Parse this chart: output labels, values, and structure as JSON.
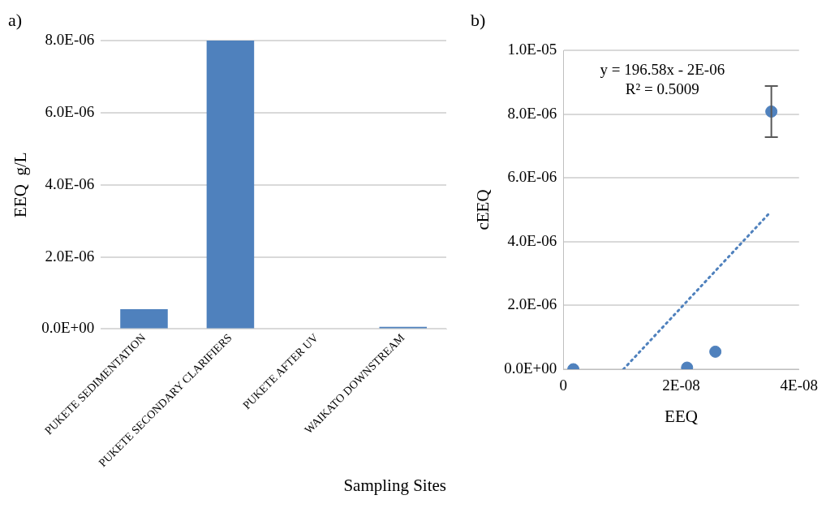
{
  "chart_data": [
    {
      "type": "bar",
      "annotations": [
        "a)"
      ],
      "xlabel": "Sampling Sites",
      "ylabel": "EEQ  g/L",
      "categories": [
        "PUKETE SEDIMENTATION",
        "PUKETE SECONDARY CLARIFIERS",
        "PUKETE AFTER UV",
        "WAIKATO DOWNSTREAM"
      ],
      "values": [
        5.5e-07,
        8e-06,
        0,
        6e-08
      ],
      "color": "#4f81bd",
      "ylim": [
        0,
        8e-06
      ],
      "yticks": [
        {
          "value": 0,
          "label": "0.0E+00"
        },
        {
          "value": 2e-06,
          "label": "2.0E-06"
        },
        {
          "value": 4e-06,
          "label": "4.0E-06"
        },
        {
          "value": 6e-06,
          "label": "6.0E-06"
        },
        {
          "value": 8e-06,
          "label": "8.0E-06"
        }
      ],
      "grid": "y",
      "legend": false
    },
    {
      "type": "scatter",
      "annotations": [
        "b)",
        "y = 196.58x - 2E-06",
        "R² = 0.5009"
      ],
      "xlabel": "EEQ",
      "ylabel": "cEEQ",
      "series": [
        {
          "type": "scatter",
          "color": "#4f81bd",
          "x": [
            1.7e-09,
            2.1e-08,
            2.58e-08,
            3.53e-08
          ],
          "values": [
            0,
            5e-08,
            5.5e-07,
            8.08e-06
          ],
          "errors": [
            null,
            null,
            null,
            8e-07
          ],
          "marker": "circle"
        },
        {
          "type": "line",
          "color": "#4f81bd",
          "x": [
            1.02e-08,
            3.5e-08
          ],
          "values": [
            0,
            4.9e-06
          ],
          "line_style": "dotted",
          "marker": "none"
        }
      ],
      "xlim": [
        0,
        4e-08
      ],
      "xticks": [
        {
          "value": 0,
          "label": "0"
        },
        {
          "value": 2e-08,
          "label": "2E-08"
        },
        {
          "value": 4e-08,
          "label": "4E-08"
        }
      ],
      "ylim": [
        0,
        1e-05
      ],
      "yticks": [
        {
          "value": 0,
          "label": "0.0E+00"
        },
        {
          "value": 2e-06,
          "label": "2.0E-06"
        },
        {
          "value": 4e-06,
          "label": "4.0E-06"
        },
        {
          "value": 6e-06,
          "label": "6.0E-06"
        },
        {
          "value": 8e-06,
          "label": "8.0E-06"
        },
        {
          "value": 1e-05,
          "label": "1.0E-05"
        }
      ],
      "grid": "y",
      "legend": false
    }
  ]
}
